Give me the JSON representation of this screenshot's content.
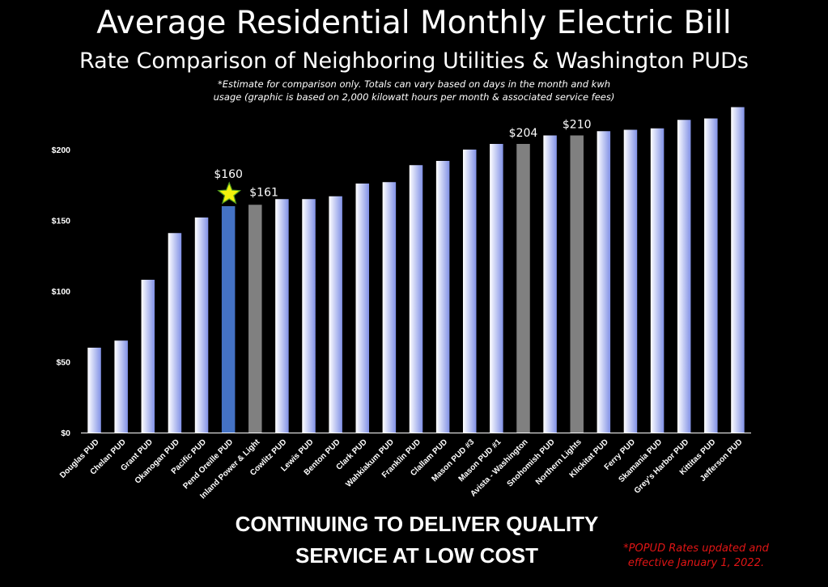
{
  "header": {
    "title": "Average Residential Monthly Electric Bill",
    "subtitle": "Rate Comparison of Neighboring Utilities & Washington PUDs",
    "note_line1": "*Estimate for comparison only.  Totals can vary based on days in the month and kwh",
    "note_line2": "usage (graphic is based on 2,000 kilowatt hours per month & associated service fees)"
  },
  "footer": {
    "tagline_line1": "CONTINUING TO DELIVER QUALITY",
    "tagline_line2": "SERVICE AT LOW COST",
    "footnote_line1": "*POPUD Rates updated and",
    "footnote_line2": "effective January 1, 2022."
  },
  "colors": {
    "background": "#000000",
    "bar_gradient_start": "#ffffff",
    "bar_gradient_end": "#8191e6",
    "highlight": "#4472c4",
    "comparison": "#808080",
    "star": "#f2f20c"
  },
  "chart_data": {
    "type": "bar",
    "title": "Average Residential Monthly Electric Bill",
    "xlabel": "",
    "ylabel": "",
    "ylim": [
      0,
      230
    ],
    "yticks": [
      0,
      50,
      100,
      150,
      200
    ],
    "ytick_labels": [
      "$0",
      "$50",
      "$100",
      "$150",
      "$200"
    ],
    "grid": false,
    "categories": [
      "Douglas PUD",
      "Chelan PUD",
      "Grant PUD",
      "Okanogan PUD",
      "Pacific PUD",
      "Pend Oreille PUD",
      "Inland Power & Light",
      "Cowlitz PUD",
      "Lewis PUD",
      "Benton PUD",
      "Clark PUD",
      "Wahkiakum PUD",
      "Franklin PUD",
      "Clallam PUD",
      "Mason PUD #3",
      "Mason PUD #1",
      "Avista - Washington",
      "Snohomish PUD",
      "Northern Lights",
      "Klickitat PUD",
      "Ferry PUD",
      "Skamania PUD",
      "Grey's Harbor PUD",
      "Kittitas PUD",
      "Jefferson PUD"
    ],
    "values": [
      60,
      65,
      108,
      141,
      152,
      160,
      161,
      165,
      165,
      167,
      176,
      177,
      189,
      192,
      200,
      204,
      204,
      210,
      210,
      213,
      214,
      215,
      221,
      222,
      230
    ],
    "bar_styles": [
      "gradient",
      "gradient",
      "gradient",
      "gradient",
      "gradient",
      "highlight",
      "comparison",
      "gradient",
      "gradient",
      "gradient",
      "gradient",
      "gradient",
      "gradient",
      "gradient",
      "gradient",
      "gradient",
      "comparison",
      "gradient",
      "comparison",
      "gradient",
      "gradient",
      "gradient",
      "gradient",
      "gradient",
      "gradient"
    ],
    "annotations": [
      {
        "category": "Pend Oreille PUD",
        "text": "$160",
        "marker": "star"
      },
      {
        "category": "Inland Power & Light",
        "text": "$161"
      },
      {
        "category": "Avista - Washington",
        "text": "$204"
      },
      {
        "category": "Northern Lights",
        "text": "$210"
      }
    ]
  }
}
